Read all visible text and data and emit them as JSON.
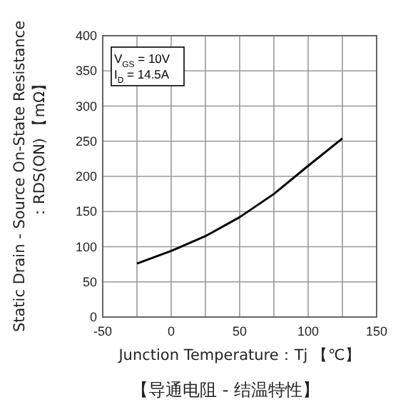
{
  "chart_data": {
    "type": "line",
    "title": "【导通电阻 - 结温特性】",
    "xlabel": "Junction Temperature：Tj  【℃】",
    "ylabel": "Static Drain - Source On-State Resistance\n：RDS(ON) 【mΩ】",
    "annotations": [
      "V$_{GS}$ = 10V\nI$_{D}$ = 14.5A"
    ],
    "x": [
      -25,
      0,
      25,
      50,
      75,
      100,
      125
    ],
    "series": [
      {
        "color": "#000000",
        "values": [
          76,
          94,
          115,
          142,
          175,
          215,
          254
        ]
      }
    ],
    "xlim": [
      -50,
      150
    ],
    "xticks": [
      -50,
      {
        "value": -25,
        "label": null
      },
      0,
      {
        "value": 25,
        "label": null
      },
      50,
      {
        "value": 75,
        "label": null
      },
      100,
      {
        "value": 125,
        "label": null
      },
      150
    ],
    "ylim": [
      0,
      400
    ],
    "yticks": [
      0,
      50,
      100,
      150,
      200,
      250,
      300,
      350,
      400
    ],
    "grid": true,
    "marker": "none",
    "line_style": "solid"
  }
}
